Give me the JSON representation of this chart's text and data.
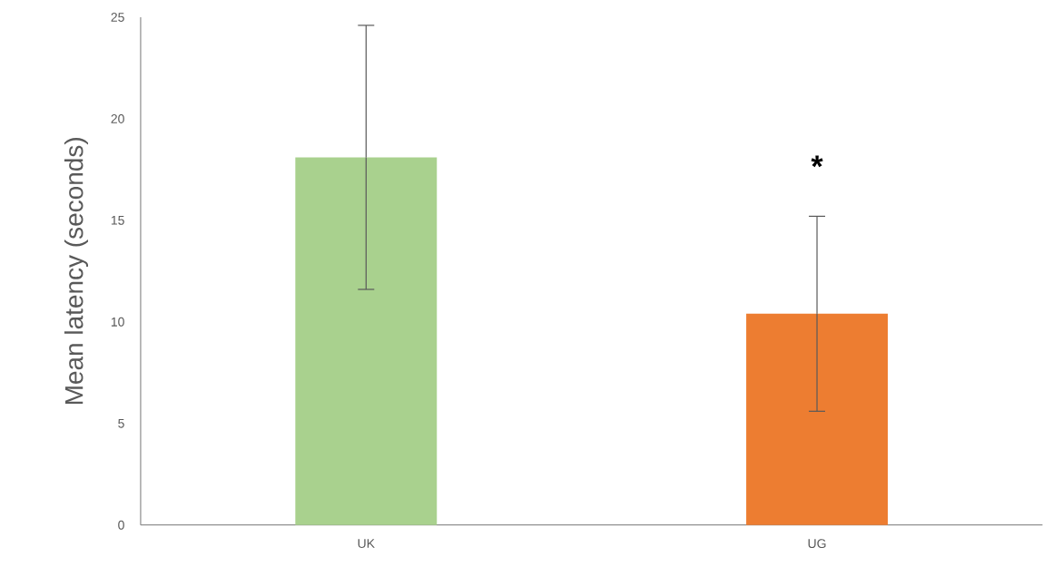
{
  "chart_data": {
    "type": "bar",
    "ylabel": "Mean latency (seconds)",
    "categories": [
      "UK",
      "UG"
    ],
    "values": [
      18.1,
      10.4
    ],
    "colors": [
      "#a9d18e",
      "#ed7d31"
    ],
    "errors": [
      6.5,
      4.8
    ],
    "ylim": [
      0,
      25
    ],
    "yticks": [
      0,
      5,
      10,
      15,
      20,
      25
    ],
    "annotations": [
      "*"
    ]
  }
}
